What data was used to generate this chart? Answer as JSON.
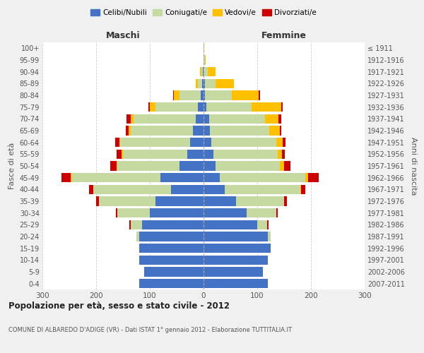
{
  "age_groups": [
    "0-4",
    "5-9",
    "10-14",
    "15-19",
    "20-24",
    "25-29",
    "30-34",
    "35-39",
    "40-44",
    "45-49",
    "50-54",
    "55-59",
    "60-64",
    "65-69",
    "70-74",
    "75-79",
    "80-84",
    "85-89",
    "90-94",
    "95-99",
    "100+"
  ],
  "birth_years": [
    "2007-2011",
    "2002-2006",
    "1997-2001",
    "1992-1996",
    "1987-1991",
    "1982-1986",
    "1977-1981",
    "1972-1976",
    "1967-1971",
    "1962-1966",
    "1957-1961",
    "1952-1956",
    "1947-1951",
    "1942-1946",
    "1937-1941",
    "1932-1936",
    "1927-1931",
    "1922-1926",
    "1917-1921",
    "1912-1916",
    "≤ 1911"
  ],
  "colors": {
    "celibe": "#4472c4",
    "coniugato": "#c5d9a0",
    "vedovo": "#ffc000",
    "divorziato": "#cc0000"
  },
  "maschi": {
    "celibe": [
      120,
      110,
      120,
      120,
      120,
      115,
      100,
      90,
      60,
      80,
      45,
      30,
      25,
      20,
      15,
      10,
      5,
      2,
      1,
      0,
      0
    ],
    "coniugato": [
      0,
      0,
      0,
      0,
      5,
      20,
      60,
      105,
      145,
      165,
      115,
      120,
      130,
      115,
      115,
      80,
      40,
      8,
      3,
      0,
      0
    ],
    "vedovo": [
      0,
      0,
      0,
      0,
      0,
      0,
      0,
      0,
      0,
      2,
      2,
      2,
      2,
      5,
      5,
      10,
      10,
      5,
      2,
      0,
      0
    ],
    "divorziato": [
      0,
      0,
      0,
      0,
      0,
      3,
      3,
      5,
      8,
      18,
      12,
      10,
      8,
      5,
      8,
      2,
      2,
      0,
      0,
      0,
      0
    ]
  },
  "femmine": {
    "nubile": [
      120,
      110,
      120,
      125,
      120,
      100,
      80,
      60,
      40,
      30,
      22,
      18,
      15,
      12,
      10,
      5,
      3,
      2,
      0,
      0,
      0
    ],
    "coniugata": [
      0,
      0,
      0,
      0,
      5,
      18,
      55,
      90,
      140,
      160,
      120,
      120,
      120,
      110,
      105,
      85,
      50,
      20,
      8,
      2,
      0
    ],
    "vedova": [
      0,
      0,
      0,
      0,
      0,
      0,
      0,
      0,
      2,
      5,
      8,
      8,
      12,
      20,
      25,
      55,
      50,
      35,
      15,
      2,
      1
    ],
    "divorziata": [
      0,
      0,
      0,
      0,
      0,
      3,
      3,
      5,
      8,
      20,
      12,
      5,
      5,
      3,
      5,
      2,
      2,
      0,
      0,
      0,
      0
    ]
  },
  "xlim": 300,
  "title": "Popolazione per età, sesso e stato civile - 2012",
  "subtitle": "COMUNE DI ALBAREDO D'ADIGE (VR) - Dati ISTAT 1° gennaio 2012 - Elaborazione TUTTITALIA.IT",
  "ylabel": "Fasce di età",
  "ylabel_right": "Anni di nascita",
  "xlabel_left": "Maschi",
  "xlabel_right": "Femmine",
  "bg_color": "#f0f0f0",
  "plot_bg": "#ffffff"
}
